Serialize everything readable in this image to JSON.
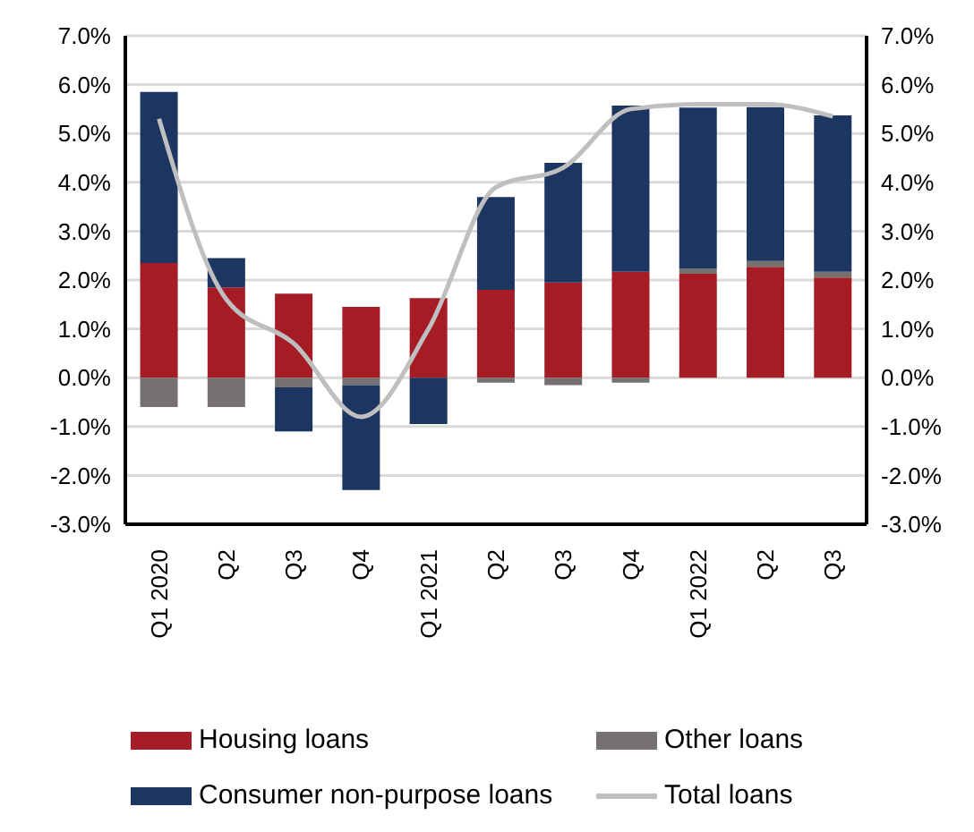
{
  "chart_data": {
    "type": "bar",
    "stacked": true,
    "categories": [
      "Q1 2020",
      "Q2",
      "Q3",
      "Q4",
      "Q1 2021",
      "Q2",
      "Q3",
      "Q4",
      "Q1 2022",
      "Q2",
      "Q3"
    ],
    "series": [
      {
        "name": "Housing loans",
        "color": "#a51c24",
        "values": [
          2.35,
          1.85,
          1.72,
          1.45,
          1.63,
          1.8,
          1.95,
          2.17,
          2.13,
          2.27,
          2.05
        ]
      },
      {
        "name": "Other loans",
        "color": "#767171",
        "values": [
          -0.6,
          -0.6,
          -0.2,
          -0.15,
          0,
          -0.1,
          -0.15,
          -0.1,
          0.1,
          0.12,
          0.12
        ]
      },
      {
        "name": "Consumer non-purpose loans",
        "color": "#1c3661",
        "values": [
          3.5,
          0.6,
          -0.9,
          -2.15,
          -0.95,
          1.9,
          2.45,
          3.4,
          3.3,
          3.15,
          3.2
        ]
      },
      {
        "name": "Total loans",
        "type": "line",
        "color": "#bfbfbf",
        "values": [
          5.3,
          1.6,
          0.7,
          -0.8,
          1.0,
          3.9,
          4.3,
          5.5,
          5.6,
          5.6,
          5.35
        ]
      }
    ],
    "ylim": [
      -3,
      7
    ],
    "yticks": [
      {
        "value": -3,
        "label": "-3.0%"
      },
      {
        "value": -2,
        "label": "-2.0%"
      },
      {
        "value": -1,
        "label": "-1.0%"
      },
      {
        "value": 0,
        "label": "0.0%"
      },
      {
        "value": 1,
        "label": "1.0%"
      },
      {
        "value": 2,
        "label": "2.0%"
      },
      {
        "value": 3,
        "label": "3.0%"
      },
      {
        "value": 4,
        "label": "4.0%"
      },
      {
        "value": 5,
        "label": "5.0%"
      },
      {
        "value": 6,
        "label": "6.0%"
      },
      {
        "value": 7,
        "label": "7.0%"
      }
    ],
    "y2lim": [
      -3,
      7
    ],
    "y2ticks": [
      {
        "value": -3,
        "label": "-3.0%"
      },
      {
        "value": -2,
        "label": "-2.0%"
      },
      {
        "value": -1,
        "label": "-1.0%"
      },
      {
        "value": 0,
        "label": "0.0%"
      },
      {
        "value": 1,
        "label": "1.0%"
      },
      {
        "value": 2,
        "label": "2.0%"
      },
      {
        "value": 3,
        "label": "3.0%"
      },
      {
        "value": 4,
        "label": "4.0%"
      },
      {
        "value": 5,
        "label": "5.0%"
      },
      {
        "value": 6,
        "label": "6.0%"
      },
      {
        "value": 7,
        "label": "7.0%"
      }
    ],
    "grid": "y",
    "legend": "bottom",
    "marker": "none",
    "line_style": "solid"
  }
}
